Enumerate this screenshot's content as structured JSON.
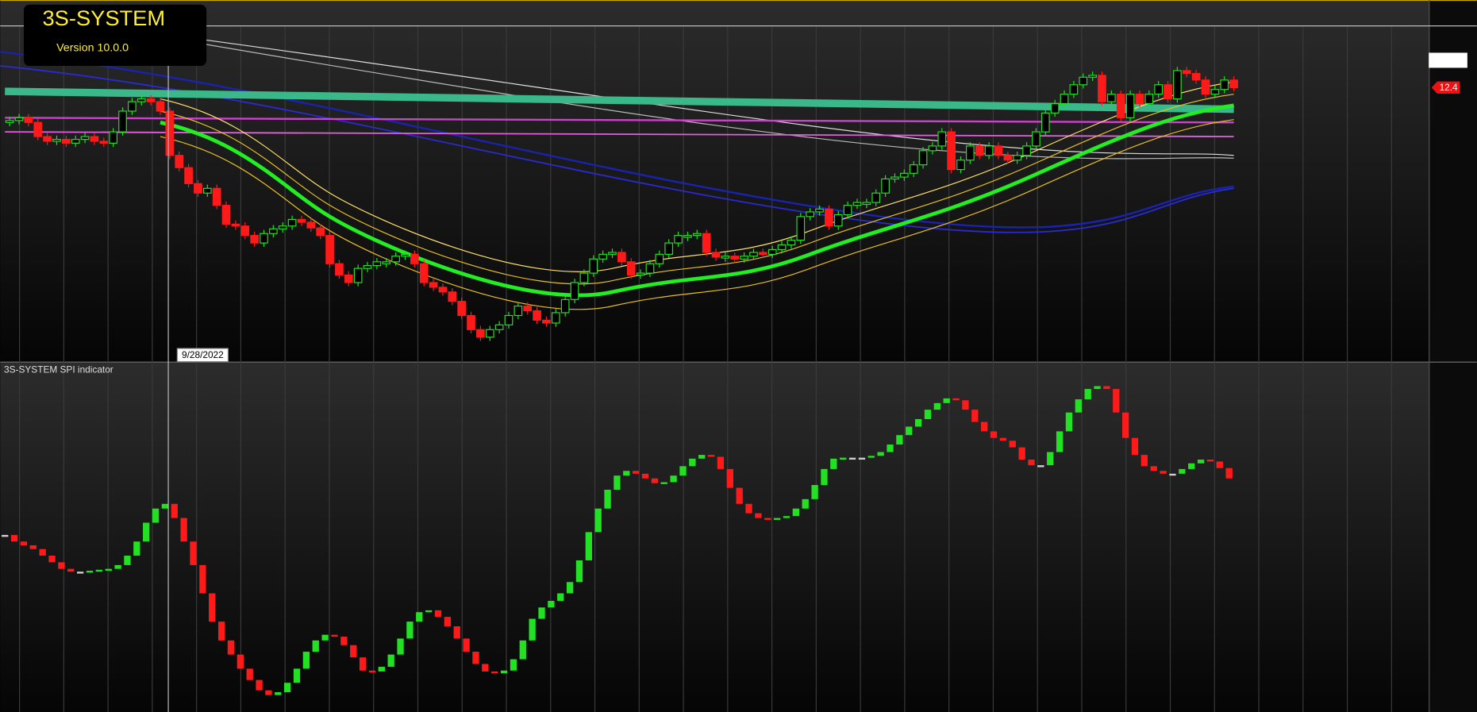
{
  "chart_data": [
    {
      "type": "candlestick",
      "title": "3S-SYSTEM",
      "subtitle": "Version 10.0.0",
      "crosshair_label": "9/28/2022",
      "price_tag": 12.4,
      "up_color": "#22e022",
      "down_color": "#ff1a1a",
      "ylim": [
        6.6,
        13.72
      ],
      "close": [
        11.7,
        11.76,
        11.66,
        11.36,
        11.26,
        11.3,
        11.22,
        11.3,
        11.36,
        11.26,
        11.22,
        11.46,
        11.9,
        12.1,
        12.16,
        12.1,
        11.9,
        10.96,
        10.7,
        10.36,
        10.16,
        10.26,
        9.9,
        9.5,
        9.46,
        9.26,
        9.1,
        9.3,
        9.4,
        9.46,
        9.6,
        9.54,
        9.42,
        9.26,
        8.66,
        8.42,
        8.26,
        8.56,
        8.62,
        8.7,
        8.7,
        8.82,
        8.86,
        8.66,
        8.26,
        8.16,
        8.06,
        7.86,
        7.56,
        7.26,
        7.1,
        7.26,
        7.36,
        7.56,
        7.76,
        7.66,
        7.46,
        7.4,
        7.62,
        7.9,
        8.26,
        8.46,
        8.76,
        8.86,
        8.9,
        8.7,
        8.42,
        8.46,
        8.66,
        8.86,
        9.1,
        9.26,
        9.26,
        9.3,
        8.9,
        8.8,
        8.82,
        8.76,
        8.82,
        8.9,
        8.86,
        8.96,
        9.06,
        9.16,
        9.66,
        9.76,
        9.82,
        9.46,
        9.7,
        9.9,
        9.96,
        9.96,
        10.16,
        10.46,
        10.5,
        10.58,
        10.76,
        11.06,
        11.16,
        11.46,
        10.66,
        10.86,
        11.16,
        10.96,
        11.16,
        10.96,
        10.86,
        10.96,
        11.16,
        11.46,
        11.86,
        12.06,
        12.26,
        12.46,
        12.62,
        12.66,
        12.1,
        12.26,
        11.76,
        12.26,
        12.06,
        12.26,
        12.46,
        12.16,
        12.76,
        12.7,
        12.56,
        12.26,
        12.36,
        12.56,
        12.4
      ]
    },
    {
      "type": "bar",
      "title": "3S-SYSTEM SPI indicator",
      "up_color": "#22e022",
      "down_color": "#ff1a1a",
      "ylim": [
        0,
        360
      ],
      "values": [
        192,
        185,
        181,
        177,
        170,
        163,
        156,
        153,
        153,
        154,
        155,
        156,
        160,
        170,
        185,
        205,
        220,
        225,
        210,
        185,
        160,
        130,
        100,
        80,
        65,
        50,
        38,
        27,
        22,
        25,
        35,
        50,
        68,
        80,
        86,
        84,
        75,
        62,
        48,
        47,
        52,
        65,
        82,
        100,
        110,
        112,
        105,
        95,
        82,
        68,
        55,
        47,
        45,
        48,
        60,
        80,
        103,
        115,
        122,
        130,
        142,
        165,
        195,
        220,
        240,
        255,
        260,
        257,
        252,
        247,
        248,
        255,
        265,
        273,
        277,
        275,
        262,
        242,
        225,
        215,
        210,
        209,
        210,
        212,
        220,
        230,
        245,
        262,
        273,
        274,
        274,
        274,
        276,
        280,
        288,
        298,
        307,
        315,
        325,
        332,
        337,
        335,
        325,
        312,
        302,
        295,
        292,
        285,
        272,
        266,
        266,
        280,
        302,
        322,
        336,
        347,
        350,
        347,
        322,
        295,
        277,
        265,
        260,
        257,
        257,
        262,
        268,
        272,
        270,
        263,
        252
      ]
    }
  ]
}
